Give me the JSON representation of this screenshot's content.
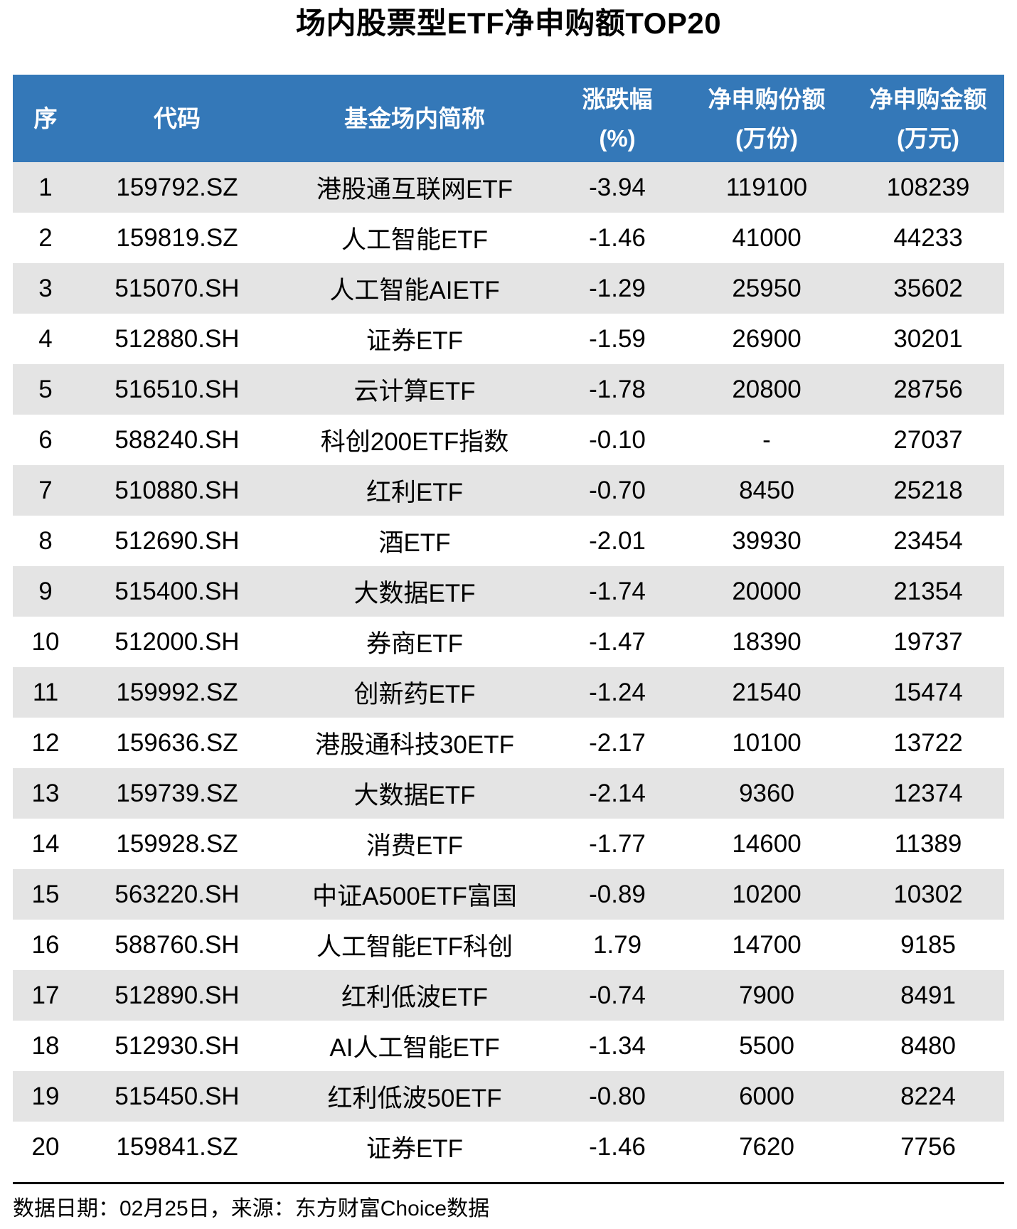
{
  "title": "场内股票型ETF净申购额TOP20",
  "chart_data": {
    "type": "table",
    "title": "场内股票型ETF净申购额TOP20",
    "columns": [
      "序",
      "代码",
      "基金场内简称",
      "涨跌幅(%)",
      "净申购份额(万份)",
      "净申购金额(万元)"
    ],
    "header_lines": [
      [
        "序"
      ],
      [
        "代码"
      ],
      [
        "基金场内简称"
      ],
      [
        "涨跌幅",
        "(%)"
      ],
      [
        "净申购份额",
        "(万份)"
      ],
      [
        "净申购金额",
        "(万元)"
      ]
    ],
    "rows": [
      [
        "1",
        "159792.SZ",
        "港股通互联网ETF",
        "-3.94",
        "119100",
        "108239"
      ],
      [
        "2",
        "159819.SZ",
        "人工智能ETF",
        "-1.46",
        "41000",
        "44233"
      ],
      [
        "3",
        "515070.SH",
        "人工智能AIETF",
        "-1.29",
        "25950",
        "35602"
      ],
      [
        "4",
        "512880.SH",
        "证券ETF",
        "-1.59",
        "26900",
        "30201"
      ],
      [
        "5",
        "516510.SH",
        "云计算ETF",
        "-1.78",
        "20800",
        "28756"
      ],
      [
        "6",
        "588240.SH",
        "科创200ETF指数",
        "-0.10",
        "-",
        "27037"
      ],
      [
        "7",
        "510880.SH",
        "红利ETF",
        "-0.70",
        "8450",
        "25218"
      ],
      [
        "8",
        "512690.SH",
        "酒ETF",
        "-2.01",
        "39930",
        "23454"
      ],
      [
        "9",
        "515400.SH",
        "大数据ETF",
        "-1.74",
        "20000",
        "21354"
      ],
      [
        "10",
        "512000.SH",
        "券商ETF",
        "-1.47",
        "18390",
        "19737"
      ],
      [
        "11",
        "159992.SZ",
        "创新药ETF",
        "-1.24",
        "21540",
        "15474"
      ],
      [
        "12",
        "159636.SZ",
        "港股通科技30ETF",
        "-2.17",
        "10100",
        "13722"
      ],
      [
        "13",
        "159739.SZ",
        "大数据ETF",
        "-2.14",
        "9360",
        "12374"
      ],
      [
        "14",
        "159928.SZ",
        "消费ETF",
        "-1.77",
        "14600",
        "11389"
      ],
      [
        "15",
        "563220.SH",
        "中证A500ETF富国",
        "-0.89",
        "10200",
        "10302"
      ],
      [
        "16",
        "588760.SH",
        "人工智能ETF科创",
        "1.79",
        "14700",
        "9185"
      ],
      [
        "17",
        "512890.SH",
        "红利低波ETF",
        "-0.74",
        "7900",
        "8491"
      ],
      [
        "18",
        "512930.SH",
        "AI人工智能ETF",
        "-1.34",
        "5500",
        "8480"
      ],
      [
        "19",
        "515450.SH",
        "红利低波50ETF",
        "-0.80",
        "6000",
        "8224"
      ],
      [
        "20",
        "159841.SZ",
        "证券ETF",
        "-1.46",
        "7620",
        "7756"
      ]
    ],
    "layout": {
      "striped_rows": "odd",
      "grid": false,
      "header_position": "top"
    }
  },
  "footer": {
    "note": "数据日期：02月25日，来源：东方财富Choice数据"
  },
  "colors": {
    "header_bg": "#3478B8",
    "header_text": "#FFFFFF",
    "stripe": "#E4E4E4",
    "row_bg": "#FFFFFF",
    "divider": "#000000",
    "text": "#000000"
  }
}
